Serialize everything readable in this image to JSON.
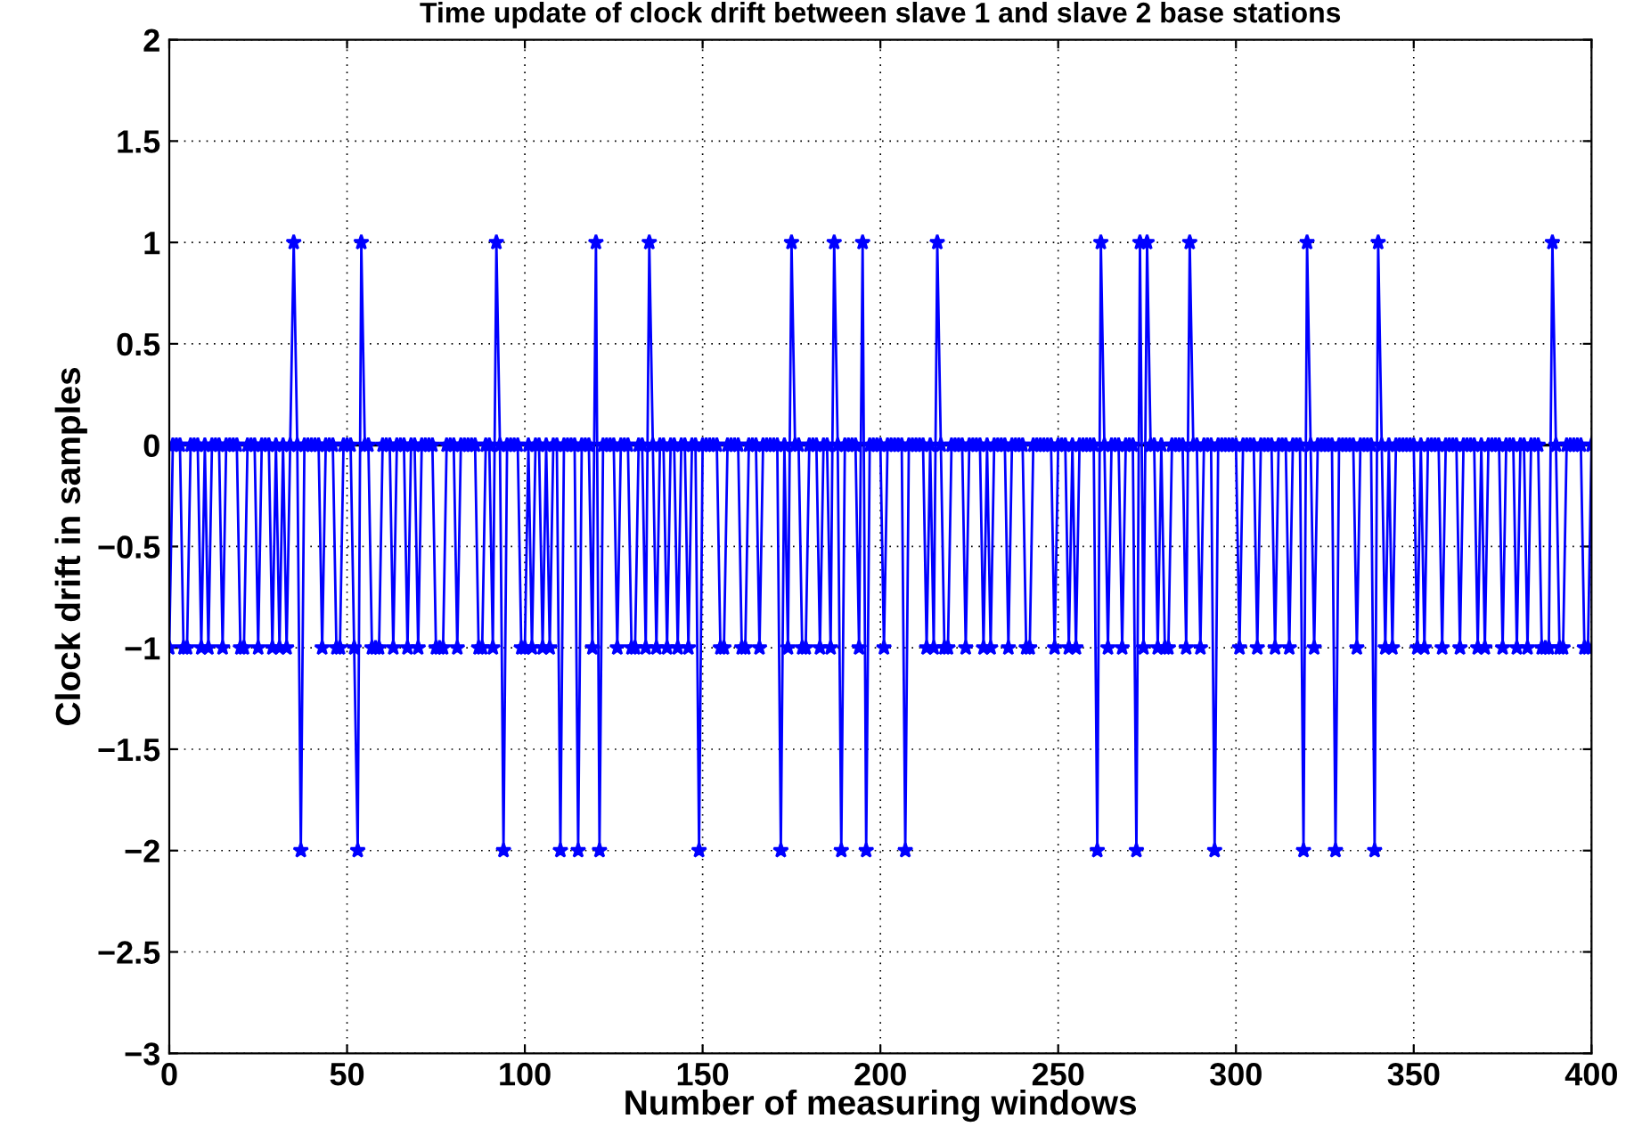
{
  "chart_data": {
    "type": "line",
    "title": "Time update of clock drift between slave 1 and slave 2 base stations",
    "xlabel": "Number of measuring windows",
    "ylabel": "Clock drift in samples",
    "xlim": [
      0,
      400
    ],
    "xticks": [
      0,
      50,
      100,
      150,
      200,
      250,
      300,
      350,
      400
    ],
    "ylim": [
      -3,
      2
    ],
    "yticks": [
      {
        "value": -3,
        "label": "−3"
      },
      {
        "value": -2.5,
        "label": "−2.5"
      },
      {
        "value": -2,
        "label": "−2"
      },
      {
        "value": -1.5,
        "label": "−1.5"
      },
      {
        "value": -1,
        "label": "−1"
      },
      {
        "value": -0.5,
        "label": "−0.5"
      },
      0,
      0.5,
      1,
      1.5,
      2
    ],
    "grid": true,
    "marker": "star",
    "line_style": "solid",
    "ref_lines": [
      {
        "axis": "y",
        "value": 0,
        "color": "#000000"
      }
    ],
    "x": [
      0,
      1,
      2,
      3,
      4,
      5,
      6,
      7,
      8,
      9,
      10,
      11,
      12,
      13,
      14,
      15,
      16,
      17,
      18,
      19,
      20,
      21,
      22,
      23,
      24,
      25,
      26,
      27,
      28,
      29,
      30,
      31,
      32,
      33,
      34,
      35,
      36,
      37,
      38,
      39,
      40,
      41,
      42,
      43,
      44,
      45,
      46,
      47,
      48,
      49,
      50,
      51,
      52,
      53,
      54,
      55,
      56,
      57,
      58,
      59,
      60,
      61,
      62,
      63,
      64,
      65,
      66,
      67,
      68,
      69,
      70,
      71,
      72,
      73,
      74,
      75,
      76,
      77,
      78,
      79,
      80,
      81,
      82,
      83,
      84,
      85,
      86,
      87,
      88,
      89,
      90,
      91,
      92,
      93,
      94,
      95,
      96,
      97,
      98,
      99,
      100,
      101,
      102,
      103,
      104,
      105,
      106,
      107,
      108,
      109,
      110,
      111,
      112,
      113,
      114,
      115,
      116,
      117,
      118,
      119,
      120,
      121,
      122,
      123,
      124,
      125,
      126,
      127,
      128,
      129,
      130,
      131,
      132,
      133,
      134,
      135,
      136,
      137,
      138,
      139,
      140,
      141,
      142,
      143,
      144,
      145,
      146,
      147,
      148,
      149,
      150,
      151,
      152,
      153,
      154,
      155,
      156,
      157,
      158,
      159,
      160,
      161,
      162,
      163,
      164,
      165,
      166,
      167,
      168,
      169,
      170,
      171,
      172,
      173,
      174,
      175,
      176,
      177,
      178,
      179,
      180,
      181,
      182,
      183,
      184,
      185,
      186,
      187,
      188,
      189,
      190,
      191,
      192,
      193,
      194,
      195,
      196,
      197,
      198,
      199,
      200,
      201,
      202,
      203,
      204,
      205,
      206,
      207,
      208,
      209,
      210,
      211,
      212,
      213,
      214,
      215,
      216,
      217,
      218,
      219,
      220,
      221,
      222,
      223,
      224,
      225,
      226,
      227,
      228,
      229,
      230,
      231,
      232,
      233,
      234,
      235,
      236,
      237,
      238,
      239,
      240,
      241,
      242,
      243,
      244,
      245,
      246,
      247,
      248,
      249,
      250,
      251,
      252,
      253,
      254,
      255,
      256,
      257,
      258,
      259,
      260,
      261,
      262,
      263,
      264,
      265,
      266,
      267,
      268,
      269,
      270,
      271,
      272,
      273,
      274,
      275,
      276,
      277,
      278,
      279,
      280,
      281,
      282,
      283,
      284,
      285,
      286,
      287,
      288,
      289,
      290,
      291,
      292,
      293,
      294,
      295,
      296,
      297,
      298,
      299,
      300,
      301,
      302,
      303,
      304,
      305,
      306,
      307,
      308,
      309,
      310,
      311,
      312,
      313,
      314,
      315,
      316,
      317,
      318,
      319,
      320,
      321,
      322,
      323,
      324,
      325,
      326,
      327,
      328,
      329,
      330,
      331,
      332,
      333,
      334,
      335,
      336,
      337,
      338,
      339,
      340,
      341,
      342,
      343,
      344,
      345,
      346,
      347,
      348,
      349,
      350,
      351,
      352,
      353,
      354,
      355,
      356,
      357,
      358,
      359,
      360,
      361,
      362,
      363,
      364,
      365,
      366,
      367,
      368,
      369,
      370,
      371,
      372,
      373,
      374,
      375,
      376,
      377,
      378,
      379,
      380,
      381,
      382,
      383,
      384,
      385,
      386,
      387,
      388,
      389,
      390,
      391,
      392,
      393,
      394,
      395,
      396,
      397,
      398,
      399,
      400
    ],
    "series": [
      {
        "color": "#0000ff",
        "values": [
          -1,
          0,
          0,
          0,
          -1,
          -1,
          0,
          0,
          0,
          -1,
          0,
          -1,
          0,
          0,
          0,
          -1,
          0,
          0,
          0,
          0,
          -1,
          -1,
          0,
          0,
          0,
          -1,
          0,
          0,
          0,
          -1,
          0,
          -1,
          0,
          -1,
          0,
          1,
          0,
          -2,
          0,
          0,
          0,
          0,
          0,
          -1,
          0,
          0,
          0,
          -1,
          -1,
          0,
          0,
          0,
          -1,
          -2,
          1,
          0,
          0,
          -1,
          -1,
          -1,
          0,
          0,
          0,
          -1,
          0,
          0,
          0,
          -1,
          0,
          0,
          -1,
          0,
          0,
          0,
          0,
          -1,
          -1,
          -1,
          0,
          0,
          0,
          -1,
          0,
          0,
          0,
          0,
          0,
          -1,
          -1,
          0,
          0,
          -1,
          1,
          0,
          -2,
          0,
          0,
          0,
          0,
          -1,
          -1,
          0,
          -1,
          0,
          0,
          -1,
          0,
          -1,
          0,
          0,
          -2,
          0,
          0,
          0,
          0,
          -2,
          0,
          0,
          0,
          -1,
          1,
          -2,
          0,
          0,
          0,
          0,
          -1,
          0,
          0,
          0,
          -1,
          -1,
          0,
          0,
          -1,
          1,
          0,
          -1,
          0,
          0,
          -1,
          0,
          0,
          -1,
          0,
          0,
          -1,
          0,
          0,
          -2,
          0,
          0,
          0,
          0,
          0,
          -1,
          -1,
          0,
          0,
          0,
          0,
          -1,
          -1,
          0,
          0,
          0,
          -1,
          0,
          0,
          0,
          0,
          0,
          -2,
          0,
          -1,
          1,
          0,
          0,
          -1,
          -1,
          0,
          0,
          0,
          -1,
          0,
          0,
          -1,
          1,
          0,
          -2,
          0,
          0,
          0,
          0,
          -1,
          1,
          -2,
          0,
          0,
          0,
          0,
          -1,
          0,
          0,
          0,
          0,
          0,
          -2,
          0,
          0,
          0,
          0,
          0,
          -1,
          0,
          -1,
          1,
          0,
          -1,
          -1,
          0,
          0,
          0,
          0,
          -1,
          0,
          0,
          0,
          0,
          -1,
          0,
          -1,
          0,
          0,
          0,
          0,
          -1,
          0,
          0,
          0,
          0,
          -1,
          -1,
          0,
          0,
          0,
          0,
          0,
          0,
          -1,
          0,
          0,
          0,
          -1,
          0,
          -1,
          0,
          0,
          0,
          0,
          0,
          -2,
          1,
          0,
          -1,
          0,
          0,
          0,
          -1,
          0,
          0,
          0,
          -2,
          1,
          -1,
          1,
          0,
          0,
          -1,
          0,
          -1,
          -1,
          0,
          0,
          0,
          0,
          -1,
          1,
          0,
          0,
          -1,
          0,
          0,
          0,
          -2,
          0,
          0,
          0,
          0,
          0,
          0,
          -1,
          0,
          0,
          0,
          0,
          -1,
          0,
          0,
          0,
          0,
          -1,
          0,
          0,
          0,
          -1,
          0,
          0,
          0,
          -2,
          1,
          0,
          -1,
          0,
          0,
          0,
          0,
          0,
          -2,
          0,
          0,
          0,
          0,
          0,
          -1,
          0,
          0,
          0,
          0,
          -2,
          1,
          0,
          -1,
          0,
          -1,
          0,
          0,
          0,
          0,
          0,
          0,
          -1,
          0,
          -1,
          0,
          0,
          0,
          0,
          -1,
          0,
          0,
          0,
          0,
          -1,
          0,
          0,
          0,
          0,
          -1,
          0,
          -1,
          0,
          0,
          0,
          0,
          -1,
          0,
          0,
          0,
          -1,
          0,
          0,
          -1,
          0,
          0,
          0,
          -1,
          -1,
          -1,
          1,
          0,
          -1,
          -1,
          0,
          0,
          0,
          0,
          0,
          -1,
          -1,
          0
        ]
      }
    ]
  }
}
